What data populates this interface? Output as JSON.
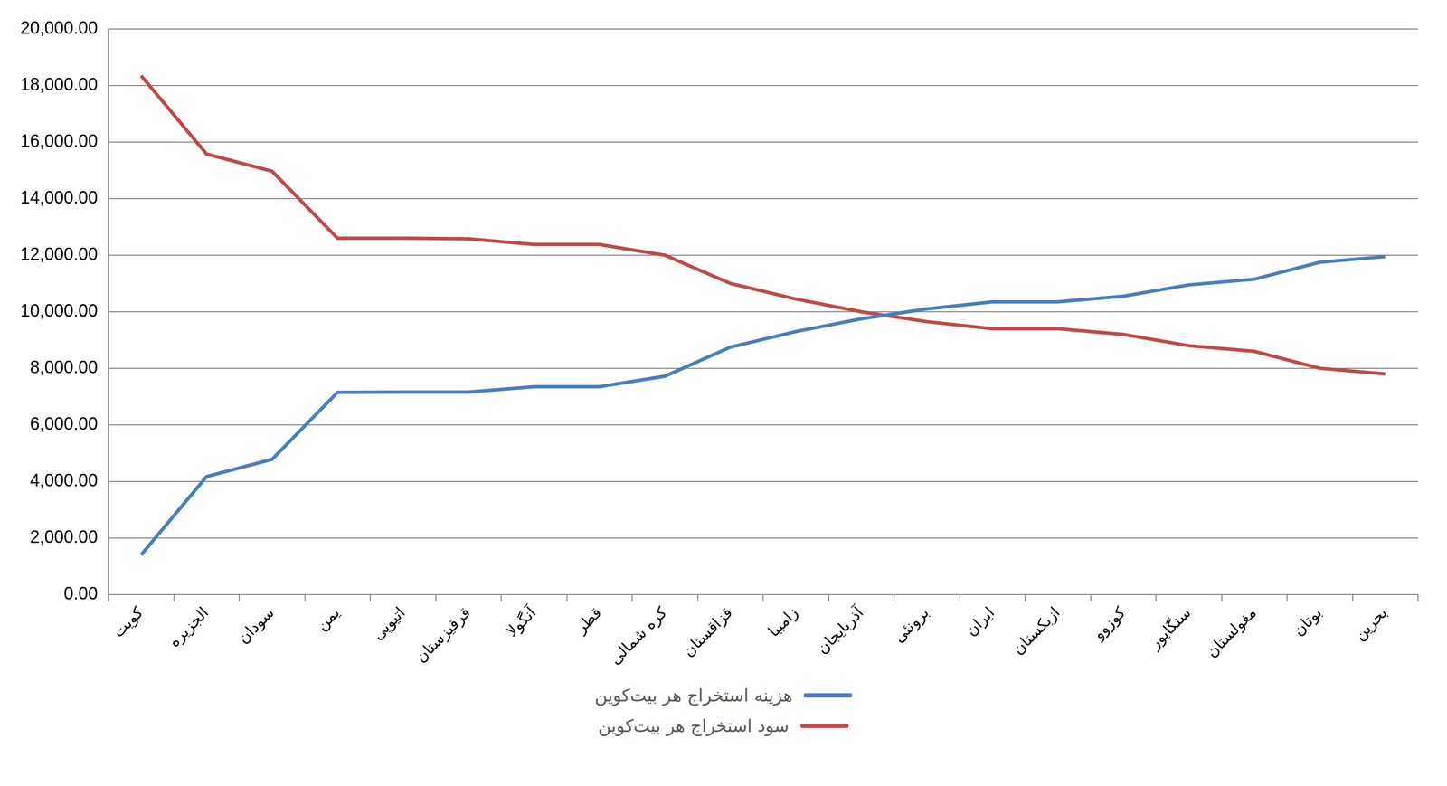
{
  "chart_data": {
    "type": "line",
    "categories": [
      "کویت",
      "الجزیره",
      "سودان",
      "یمن",
      "اتیوپی",
      "قرقیزستان",
      "آنگولا",
      "قطر",
      "کره شمالی",
      "قزاقستان",
      "زامبیا",
      "آذربایجان",
      "برونئی",
      "ایران",
      "ازبکستان",
      "کوزوو",
      "سنگاپور",
      "مغولستان",
      "بوتان",
      "بحرین"
    ],
    "series": [
      {
        "name": "هزینه استخراج هر بیت‌کوین",
        "color": "#4a7ebb",
        "values": [
          1400,
          4170,
          4780,
          7150,
          7160,
          7160,
          7350,
          7350,
          7720,
          8750,
          9300,
          9750,
          10100,
          10350,
          10350,
          10550,
          10950,
          11150,
          11750,
          11950
        ]
      },
      {
        "name": "سود استخراج هر بیت‌کوین",
        "color": "#be4b48",
        "values": [
          18350,
          15580,
          14970,
          12600,
          12600,
          12580,
          12380,
          12380,
          12000,
          11000,
          10450,
          10000,
          9650,
          9400,
          9400,
          9200,
          8800,
          8600,
          8000,
          7800
        ]
      }
    ],
    "ylim": [
      0,
      20000
    ],
    "yticks": [
      {
        "value": 0,
        "label": "0.00"
      },
      {
        "value": 2000,
        "label": "2,000.00"
      },
      {
        "value": 4000,
        "label": "4,000.00"
      },
      {
        "value": 6000,
        "label": "6,000.00"
      },
      {
        "value": 8000,
        "label": "8,000.00"
      },
      {
        "value": 10000,
        "label": "10,000.00"
      },
      {
        "value": 12000,
        "label": "12,000.00"
      },
      {
        "value": 14000,
        "label": "14,000.00"
      },
      {
        "value": 16000,
        "label": "16,000.00"
      },
      {
        "value": 18000,
        "label": "18,000.00"
      },
      {
        "value": 20000,
        "label": "20,000.00"
      }
    ],
    "grid": true,
    "legend": "bottom"
  }
}
